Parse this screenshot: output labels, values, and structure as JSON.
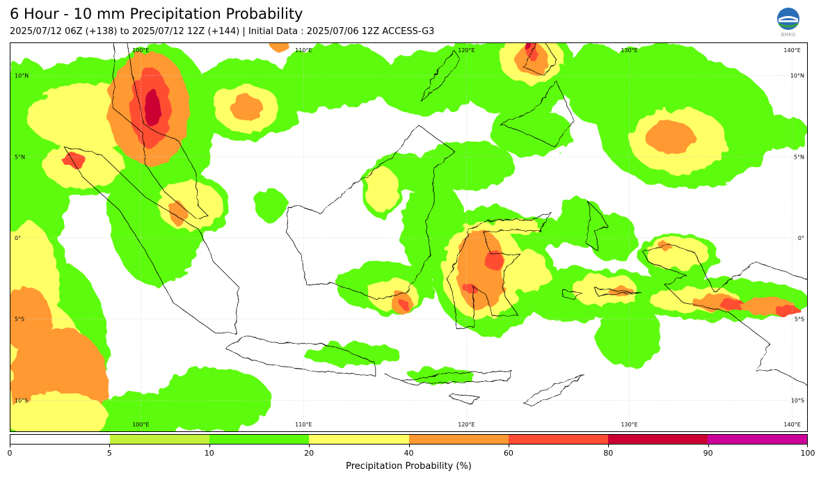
{
  "header": {
    "title": "6 Hour - 10 mm Precipitation Probability",
    "subtitle": "2025/07/12 06Z (+138) to 2025/07/12 12Z (+144) | Initial Data : 2025/07/06 12Z ACCESS-G3",
    "logo_label": "BMKG"
  },
  "map": {
    "lon_range": [
      92,
      141
    ],
    "lat_range": [
      -12,
      12
    ],
    "lon_ticks": [
      "100°E",
      "110°E",
      "120°E",
      "130°E",
      "140°E"
    ],
    "lat_ticks": [
      "10°N",
      "5°N",
      "0°",
      "5°S",
      "10°S"
    ],
    "grid": true
  },
  "colorbar": {
    "title": "Precipitation Probability (%)",
    "ticks": [
      "0",
      "5",
      "10",
      "20",
      "40",
      "60",
      "80",
      "90",
      "100"
    ],
    "colors": [
      "#ffffff",
      "#c4f23a",
      "#5dfb08",
      "#ffff66",
      "#ff9933",
      "#ff4d33",
      "#cc0033",
      "#cc0099"
    ]
  }
}
